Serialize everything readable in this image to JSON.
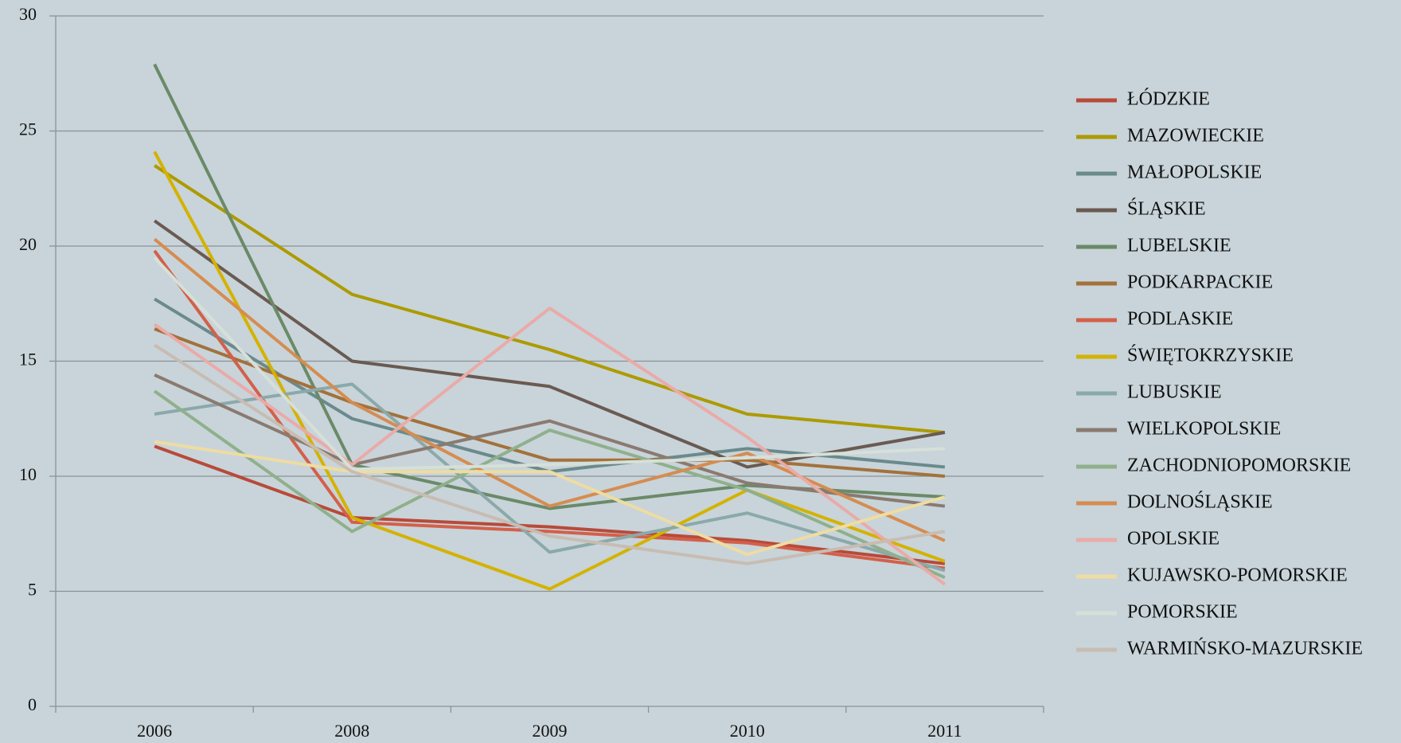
{
  "chart_data": {
    "type": "line",
    "categories": [
      "2006",
      "2008",
      "2009",
      "2010",
      "2011"
    ],
    "ylim": [
      0,
      30
    ],
    "yticks": [
      0,
      5,
      10,
      15,
      20,
      25,
      30
    ],
    "grid": true,
    "legend": "right",
    "series": [
      {
        "name": "ŁÓDZKIE",
        "color": "#b84a3a",
        "values": [
          11.3,
          8.2,
          7.8,
          7.2,
          6.2
        ]
      },
      {
        "name": "MAZOWIECKIE",
        "color": "#ad9a00",
        "values": [
          23.5,
          17.9,
          15.5,
          12.7,
          11.9
        ]
      },
      {
        "name": "MAŁOPOLSKIE",
        "color": "#6a8a8c",
        "values": [
          17.7,
          12.5,
          10.2,
          11.2,
          10.4
        ]
      },
      {
        "name": "ŚLĄSKIE",
        "color": "#6a5a52",
        "values": [
          21.1,
          15.0,
          13.9,
          10.4,
          11.9
        ]
      },
      {
        "name": "LUBELSKIE",
        "color": "#6b8a68",
        "values": [
          27.9,
          10.5,
          8.6,
          9.6,
          9.1
        ]
      },
      {
        "name": "PODKARPACKIE",
        "color": "#a3713c",
        "values": [
          16.4,
          13.2,
          10.7,
          10.7,
          10.0
        ]
      },
      {
        "name": "PODLASKIE",
        "color": "#d3604a",
        "values": [
          19.8,
          8.0,
          7.6,
          7.1,
          6.0
        ]
      },
      {
        "name": "ŚWIĘTOKRZYSKIE",
        "color": "#d4b200",
        "values": [
          24.1,
          8.2,
          5.1,
          9.4,
          6.3
        ]
      },
      {
        "name": "LUBUSKIE",
        "color": "#8aa9aa",
        "values": [
          12.7,
          14.0,
          6.7,
          8.4,
          5.9
        ]
      },
      {
        "name": "WIELKOPOLSKIE",
        "color": "#8a7a70",
        "values": [
          14.4,
          10.5,
          12.4,
          9.7,
          8.7
        ]
      },
      {
        "name": "ZACHODNIOPOMORSKIE",
        "color": "#8fb08b",
        "values": [
          13.7,
          7.6,
          12.0,
          9.4,
          5.6
        ]
      },
      {
        "name": "DOLNOŚLĄSKIE",
        "color": "#d68c50",
        "values": [
          20.3,
          13.2,
          8.7,
          11.0,
          7.2
        ]
      },
      {
        "name": "OPOLSKIE",
        "color": "#eaaaa8",
        "values": [
          16.6,
          10.5,
          17.3,
          11.7,
          5.3
        ]
      },
      {
        "name": "KUJAWSKO-POMORSKIE",
        "color": "#eedca2",
        "values": [
          11.5,
          10.2,
          10.2,
          6.6,
          9.1
        ]
      },
      {
        "name": "POMORSKIE",
        "color": "#d6e0d8",
        "values": [
          19.5,
          10.3,
          10.5,
          10.8,
          11.2
        ]
      },
      {
        "name": "WARMIŃSKO-MAZURSKIE",
        "color": "#c8bcb2",
        "values": [
          15.7,
          10.2,
          7.4,
          6.2,
          7.6
        ]
      }
    ]
  }
}
